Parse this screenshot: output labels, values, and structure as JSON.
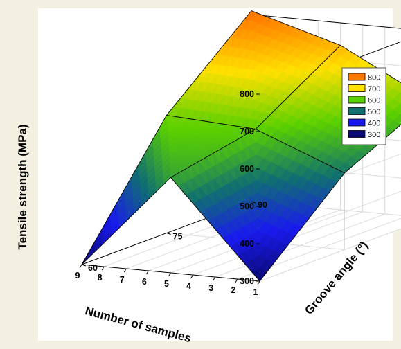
{
  "chart_data": {
    "type": "surface3d",
    "xlabel": "Number of samples",
    "ylabel": "Groove angle (°)",
    "zlabel": "Tensile strength (MPa)",
    "x": [
      1,
      5,
      9
    ],
    "x_ticks": [
      "1",
      "2",
      "3",
      "4",
      "5",
      "6",
      "7",
      "8",
      "9"
    ],
    "y": [
      60,
      75,
      90
    ],
    "y_ticks": [
      "60",
      "75",
      "90"
    ],
    "z_ticks": [
      "300",
      "400",
      "500",
      "600",
      "700",
      "800"
    ],
    "zlim": [
      300,
      800
    ],
    "z": [
      [
        300,
        555,
        300
      ],
      [
        505,
        600,
        615
      ],
      [
        615,
        740,
        810
      ]
    ],
    "legend": {
      "position": "top-right",
      "levels": [
        {
          "label": "800",
          "color": "#ff7a00"
        },
        {
          "label": "700",
          "color": "#ffe000"
        },
        {
          "label": "600",
          "color": "#5ad000"
        },
        {
          "label": "500",
          "color": "#107070"
        },
        {
          "label": "400",
          "color": "#1a1aee"
        },
        {
          "label": "300",
          "color": "#0a0a70"
        }
      ]
    }
  }
}
